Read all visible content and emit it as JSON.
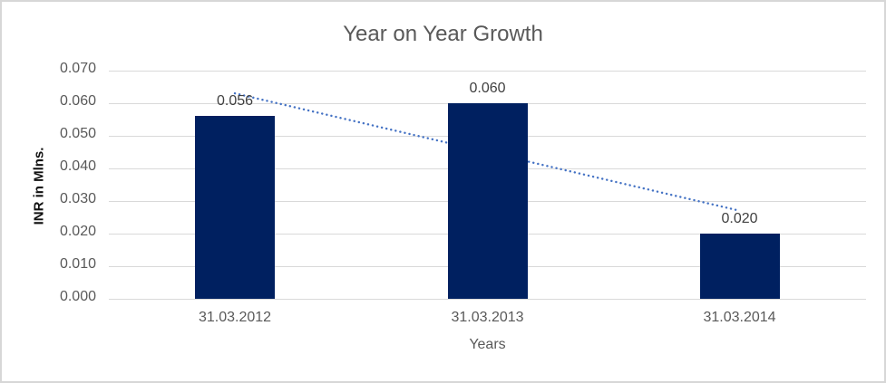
{
  "chart_data": {
    "type": "bar",
    "title": "Year on Year Growth",
    "xlabel": "Years",
    "ylabel": "INR in Mlns.",
    "categories": [
      "31.03.2012",
      "31.03.2013",
      "31.03.2014"
    ],
    "values": [
      0.056,
      0.06,
      0.02
    ],
    "data_labels": [
      "0.056",
      "0.060",
      "0.020"
    ],
    "ylim": [
      0,
      0.07
    ],
    "ytick_step": 0.01,
    "yticks": [
      "0.070",
      "0.060",
      "0.050",
      "0.040",
      "0.030",
      "0.020",
      "0.010",
      "0.000"
    ],
    "grid": true,
    "legend": "none",
    "trendline": {
      "type": "linear",
      "style": "dotted",
      "y_start": 0.0633,
      "y_end": 0.0273
    },
    "colors": {
      "bar": "#002060",
      "trendline": "#4472C4",
      "gridline": "#D9D9D9",
      "axis_text": "#595959",
      "title_text": "#595959",
      "data_label_text": "#404040",
      "chart_border": "#D7D7D7",
      "background": "#FFFFFF"
    }
  }
}
